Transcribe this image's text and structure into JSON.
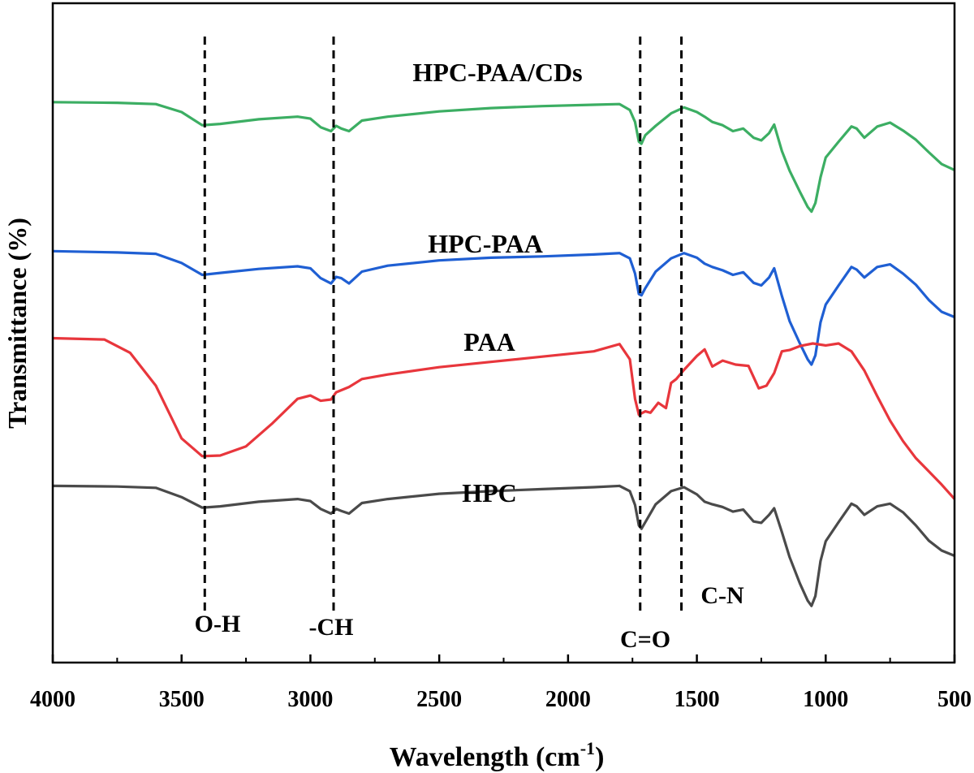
{
  "chart_data": {
    "type": "line",
    "xlabel": "Wavelength (cm",
    "xlabel_sup": "-1",
    "xlabel_close": ")",
    "ylabel": "Transmittance (%)",
    "xlim": [
      4000,
      500
    ],
    "x_reversed": true,
    "x_ticks": [
      4000,
      3500,
      3000,
      2500,
      2000,
      1500,
      1000,
      500
    ],
    "x_tick_labels": [
      "4000",
      "3500",
      "3000",
      "2500",
      "2000",
      "1500",
      "1000",
      "500"
    ],
    "ylim": [
      0,
      100
    ],
    "y_ticks_shown": false,
    "grid": false,
    "legend": "none",
    "reference_lines": [
      {
        "x": 3410,
        "label": "O-H"
      },
      {
        "x": 2910,
        "label": "-CH"
      },
      {
        "x": 1720,
        "label": "C=O"
      },
      {
        "x": 1560,
        "label": "C-N"
      }
    ],
    "series": [
      {
        "name": "HPC-PAA/CDs",
        "color": "#3cae63",
        "x": [
          4000,
          3750,
          3600,
          3500,
          3420,
          3350,
          3200,
          3050,
          3000,
          2960,
          2920,
          2900,
          2880,
          2850,
          2800,
          2700,
          2500,
          2300,
          2100,
          1900,
          1800,
          1760,
          1740,
          1725,
          1715,
          1700,
          1660,
          1600,
          1550,
          1500,
          1470,
          1440,
          1400,
          1360,
          1320,
          1280,
          1250,
          1220,
          1200,
          1170,
          1140,
          1100,
          1070,
          1055,
          1040,
          1020,
          1000,
          950,
          900,
          880,
          850,
          800,
          750,
          700,
          650,
          600,
          550,
          500
        ],
        "y": [
          85.0,
          84.9,
          84.7,
          83.5,
          81.5,
          81.7,
          82.4,
          82.8,
          82.5,
          81.2,
          80.6,
          81.4,
          81.0,
          80.6,
          82.2,
          82.8,
          83.6,
          84.1,
          84.4,
          84.6,
          84.7,
          83.8,
          82.0,
          79.0,
          78.7,
          80.0,
          81.4,
          83.3,
          84.2,
          83.5,
          82.8,
          82.0,
          81.5,
          80.6,
          81.0,
          79.6,
          79.2,
          80.3,
          81.6,
          77.6,
          74.6,
          71.4,
          69.1,
          68.4,
          69.7,
          73.6,
          76.6,
          79.0,
          81.3,
          81.0,
          79.6,
          81.3,
          81.9,
          80.7,
          79.3,
          77.4,
          75.6,
          74.7
        ]
      },
      {
        "name": "HPC-PAA",
        "color": "#1f5fd3",
        "x": [
          4000,
          3750,
          3600,
          3500,
          3420,
          3350,
          3200,
          3050,
          3000,
          2960,
          2920,
          2900,
          2880,
          2850,
          2800,
          2700,
          2500,
          2300,
          2100,
          1900,
          1800,
          1760,
          1740,
          1725,
          1715,
          1700,
          1660,
          1600,
          1550,
          1500,
          1470,
          1440,
          1400,
          1360,
          1320,
          1280,
          1250,
          1220,
          1200,
          1170,
          1140,
          1100,
          1070,
          1055,
          1040,
          1020,
          1000,
          950,
          900,
          880,
          850,
          800,
          750,
          700,
          650,
          600,
          550,
          500
        ],
        "y": [
          62.4,
          62.2,
          62.0,
          60.6,
          58.8,
          59.1,
          59.7,
          60.1,
          59.8,
          58.3,
          57.5,
          58.5,
          58.3,
          57.5,
          59.3,
          60.2,
          61.0,
          61.4,
          61.6,
          61.9,
          62.1,
          61.3,
          59.0,
          55.9,
          55.7,
          56.8,
          59.3,
          61.3,
          62.1,
          61.4,
          60.5,
          60.0,
          59.5,
          58.8,
          59.2,
          57.6,
          57.2,
          58.4,
          59.8,
          55.6,
          51.8,
          48.4,
          46.0,
          45.2,
          46.6,
          51.6,
          54.3,
          57.2,
          60.0,
          59.6,
          58.4,
          60.0,
          60.4,
          59.0,
          57.3,
          55.0,
          53.2,
          52.4
        ]
      },
      {
        "name": "PAA",
        "color": "#e8363c",
        "x": [
          4000,
          3800,
          3700,
          3600,
          3500,
          3420,
          3350,
          3250,
          3150,
          3050,
          3000,
          2960,
          2920,
          2900,
          2850,
          2800,
          2700,
          2500,
          2300,
          2100,
          1900,
          1800,
          1760,
          1740,
          1725,
          1715,
          1700,
          1680,
          1650,
          1620,
          1600,
          1580,
          1550,
          1500,
          1470,
          1440,
          1400,
          1350,
          1300,
          1260,
          1230,
          1200,
          1170,
          1140,
          1100,
          1050,
          1000,
          950,
          900,
          850,
          800,
          750,
          700,
          650,
          600,
          550,
          500
        ],
        "y": [
          49.2,
          49.0,
          47.0,
          42.0,
          34.0,
          31.3,
          31.4,
          32.8,
          36.2,
          40.0,
          40.5,
          39.7,
          39.9,
          41.0,
          41.8,
          43.0,
          43.7,
          44.8,
          45.6,
          46.4,
          47.2,
          48.3,
          46.0,
          40.0,
          37.6,
          37.8,
          38.1,
          37.9,
          39.4,
          38.6,
          42.4,
          43.0,
          44.4,
          46.5,
          47.5,
          44.9,
          45.8,
          45.2,
          45.0,
          41.6,
          42.0,
          43.9,
          47.2,
          47.4,
          48.0,
          48.4,
          48.1,
          48.4,
          47.2,
          44.3,
          40.4,
          36.7,
          33.6,
          31.0,
          29.0,
          27.0,
          24.8
        ]
      },
      {
        "name": "HPC",
        "color": "#4a4a4a",
        "x": [
          4000,
          3750,
          3600,
          3500,
          3420,
          3350,
          3200,
          3050,
          3000,
          2960,
          2920,
          2900,
          2880,
          2850,
          2800,
          2700,
          2500,
          2300,
          2100,
          1900,
          1800,
          1760,
          1740,
          1725,
          1715,
          1700,
          1660,
          1600,
          1550,
          1500,
          1470,
          1440,
          1400,
          1360,
          1320,
          1280,
          1250,
          1220,
          1200,
          1170,
          1140,
          1100,
          1070,
          1055,
          1040,
          1020,
          1000,
          950,
          900,
          880,
          850,
          800,
          750,
          700,
          650,
          600,
          550,
          500
        ],
        "y": [
          26.8,
          26.7,
          26.5,
          25.1,
          23.5,
          23.7,
          24.4,
          24.8,
          24.5,
          23.3,
          22.6,
          23.3,
          23.0,
          22.6,
          24.2,
          24.8,
          25.6,
          26.0,
          26.3,
          26.6,
          26.8,
          26.0,
          23.9,
          20.8,
          20.3,
          21.3,
          24.0,
          26.0,
          26.6,
          25.5,
          24.4,
          24.0,
          23.6,
          22.9,
          23.2,
          21.4,
          21.2,
          22.4,
          23.4,
          19.8,
          16.0,
          12.0,
          9.4,
          8.6,
          10.1,
          15.4,
          18.4,
          21.3,
          24.1,
          23.7,
          22.4,
          23.7,
          24.1,
          22.8,
          20.8,
          18.5,
          17.0,
          16.2
        ]
      }
    ]
  }
}
